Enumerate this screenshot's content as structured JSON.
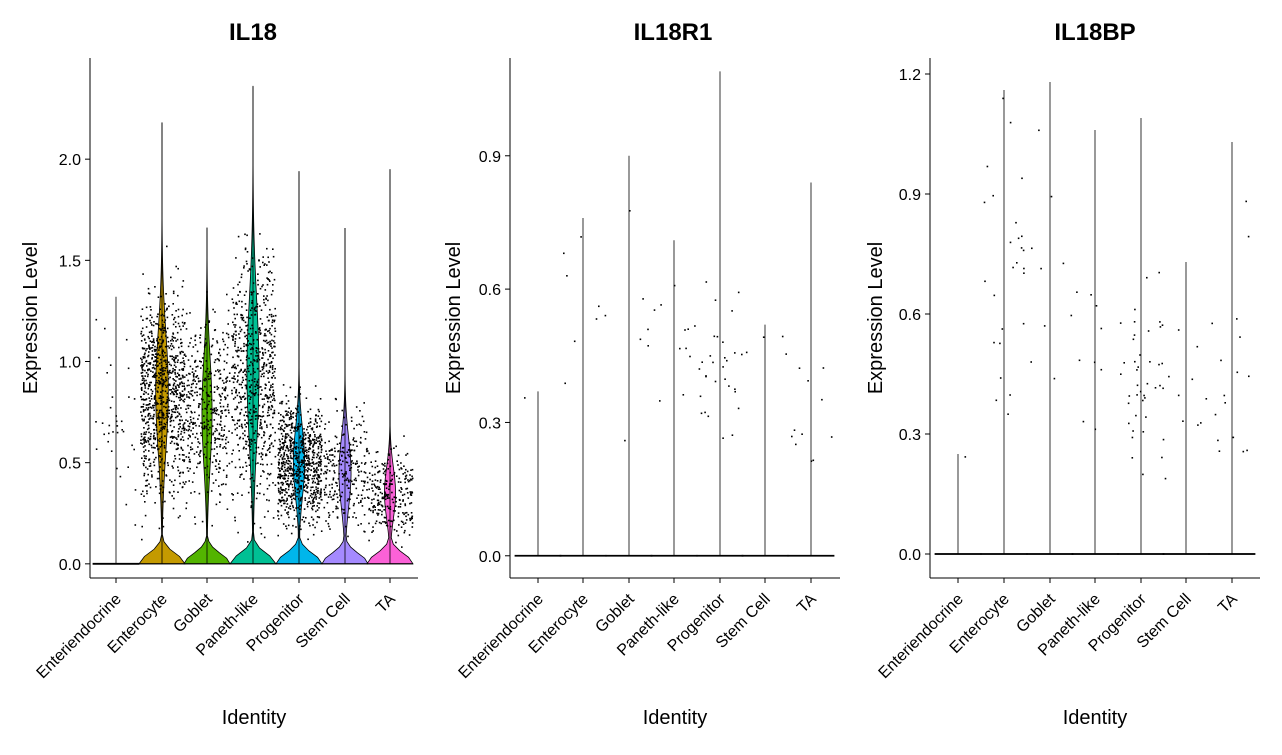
{
  "chart_data": [
    {
      "type": "violin",
      "title": "IL18",
      "xlabel": "Identity",
      "ylabel": "Expression Level",
      "ylim": [
        -0.07,
        2.5
      ],
      "yticks": [
        "0.0",
        "0.5",
        "1.0",
        "1.5",
        "2.0"
      ],
      "categories": [
        "Enteriendocrine",
        "Enterocyte",
        "Goblet",
        "Paneth-like",
        "Progenitor",
        "Stem Cell",
        "TA"
      ],
      "series": [
        {
          "category": "Enteriendocrine",
          "color": "#F8766D",
          "max": 1.32,
          "base_width": 0.02,
          "points": 35,
          "mid": 0.75,
          "spread": 0.35
        },
        {
          "category": "Enterocyte",
          "color": "#C49A00",
          "max": 2.18,
          "base_width": 0.5,
          "points": 900,
          "mid": 0.85,
          "spread": 0.35
        },
        {
          "category": "Goblet",
          "color": "#53B400",
          "max": 1.66,
          "base_width": 0.4,
          "points": 420,
          "mid": 0.75,
          "spread": 0.32
        },
        {
          "category": "Paneth-like",
          "color": "#00C094",
          "max": 2.36,
          "base_width": 0.48,
          "points": 700,
          "mid": 0.95,
          "spread": 0.42
        },
        {
          "category": "Progenitor",
          "color": "#00B6EB",
          "max": 1.94,
          "base_width": 0.45,
          "points": 800,
          "mid": 0.5,
          "spread": 0.2
        },
        {
          "category": "Stem Cell",
          "color": "#A58AFF",
          "max": 1.66,
          "base_width": 0.48,
          "points": 260,
          "mid": 0.45,
          "spread": 0.2
        },
        {
          "category": "TA",
          "color": "#FB61D7",
          "max": 1.95,
          "base_width": 0.44,
          "points": 260,
          "mid": 0.35,
          "spread": 0.15
        }
      ]
    },
    {
      "type": "violin",
      "title": "IL18R1",
      "xlabel": "Identity",
      "ylabel": "Expression Level",
      "ylim": [
        -0.05,
        1.12
      ],
      "yticks": [
        "0.0",
        "0.3",
        "0.6",
        "0.9"
      ],
      "categories": [
        "Enteriendocrine",
        "Enterocyte",
        "Goblet",
        "Paneth-like",
        "Progenitor",
        "Stem Cell",
        "TA"
      ],
      "series": [
        {
          "category": "Enteriendocrine",
          "color": "#F8766D",
          "max": 0.37,
          "points": 1,
          "mid": 0.36,
          "spread": 0.01
        },
        {
          "category": "Enterocyte",
          "color": "#C49A00",
          "max": 0.76,
          "points": 8,
          "mid": 0.6,
          "spread": 0.18
        },
        {
          "category": "Goblet",
          "color": "#53B400",
          "max": 0.9,
          "points": 6,
          "mid": 0.5,
          "spread": 0.25
        },
        {
          "category": "Paneth-like",
          "color": "#00C094",
          "max": 0.71,
          "points": 11,
          "mid": 0.5,
          "spread": 0.12
        },
        {
          "category": "Progenitor",
          "color": "#00B6EB",
          "max": 1.09,
          "points": 30,
          "mid": 0.45,
          "spread": 0.12
        },
        {
          "category": "Stem Cell",
          "color": "#A58AFF",
          "max": 0.52,
          "points": 4,
          "mid": 0.45,
          "spread": 0.08
        },
        {
          "category": "TA",
          "color": "#FB61D7",
          "max": 0.84,
          "points": 11,
          "mid": 0.35,
          "spread": 0.1
        }
      ]
    },
    {
      "type": "violin",
      "title": "IL18BP",
      "xlabel": "Identity",
      "ylabel": "Expression Level",
      "ylim": [
        -0.06,
        1.24
      ],
      "yticks": [
        "0.0",
        "0.3",
        "0.6",
        "0.9",
        "1.2"
      ],
      "categories": [
        "Enteriendocrine",
        "Enterocyte",
        "Goblet",
        "Paneth-like",
        "Progenitor",
        "Stem Cell",
        "TA"
      ],
      "series": [
        {
          "category": "Enteriendocrine",
          "color": "#F8766D",
          "max": 0.25,
          "points": 1,
          "mid": 0.25,
          "spread": 0.01
        },
        {
          "category": "Enterocyte",
          "color": "#C49A00",
          "max": 1.16,
          "points": 26,
          "mid": 0.8,
          "spread": 0.25
        },
        {
          "category": "Goblet",
          "color": "#53B400",
          "max": 1.18,
          "points": 9,
          "mid": 0.7,
          "spread": 0.3
        },
        {
          "category": "Paneth-like",
          "color": "#00C094",
          "max": 1.06,
          "points": 9,
          "mid": 0.5,
          "spread": 0.15
        },
        {
          "category": "Progenitor",
          "color": "#00B6EB",
          "max": 1.09,
          "points": 42,
          "mid": 0.45,
          "spread": 0.15
        },
        {
          "category": "Stem Cell",
          "color": "#A58AFF",
          "max": 0.73,
          "points": 10,
          "mid": 0.4,
          "spread": 0.15
        },
        {
          "category": "TA",
          "color": "#FB61D7",
          "max": 1.03,
          "points": 16,
          "mid": 0.45,
          "spread": 0.25
        }
      ]
    }
  ]
}
